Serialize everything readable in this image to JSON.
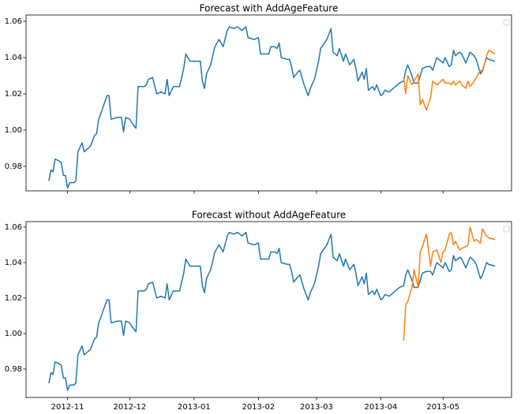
{
  "chart_data": [
    {
      "type": "line",
      "title": "Forecast with AddAgeFeature",
      "xlim": [
        11,
        245
      ],
      "ylim": [
        0.9665,
        1.0635
      ],
      "yticks": [
        0.98,
        {
          "value": 1.0,
          "label": "1.00"
        },
        1.02,
        1.04,
        1.06
      ],
      "series": [
        {
          "color": "#1f77b4",
          "x": [
            22,
            23,
            24,
            25,
            27,
            28,
            29,
            30,
            31,
            32,
            34,
            35,
            36,
            38,
            39,
            41,
            42,
            44,
            45,
            46,
            47,
            50,
            51,
            52,
            55,
            57,
            58,
            59,
            61,
            62,
            64,
            65,
            68,
            69,
            70,
            72,
            74,
            76,
            78,
            79,
            80,
            82,
            85,
            87,
            88,
            90,
            93,
            95,
            96,
            97,
            98,
            100,
            102,
            104,
            106,
            108,
            109,
            111,
            113,
            115,
            117,
            118,
            121,
            123,
            124,
            126,
            128,
            129,
            131,
            132,
            133,
            134,
            137,
            138,
            139,
            140,
            142,
            143,
            145,
            147,
            148,
            150,
            152,
            153,
            156,
            158,
            159,
            161,
            162,
            164,
            165,
            167,
            169,
            170,
            171,
            173,
            174,
            175,
            176,
            178,
            179,
            180,
            182,
            183,
            184,
            186,
            188,
            190,
            191,
            193,
            194,
            195,
            197,
            198,
            200,
            201,
            202,
            204,
            206,
            207,
            209,
            211,
            212,
            213,
            215,
            216,
            217,
            218,
            220,
            221,
            223,
            224,
            225,
            227,
            228,
            230,
            231,
            233,
            234,
            237
          ],
          "values": [
            0.972,
            0.978,
            0.977,
            0.984,
            0.983,
            0.982,
            0.975,
            0.975,
            0.968,
            0.971,
            0.971,
            0.972,
            0.988,
            0.993,
            0.988,
            0.99,
            0.991,
            0.997,
            0.998,
            1.006,
            1.009,
            1.019,
            1.019,
            1.006,
            1.007,
            1.007,
            0.999,
            1.007,
            1.006,
            1.004,
            1.001,
            1.024,
            1.024,
            1.025,
            1.028,
            1.029,
            1.02,
            1.021,
            1.02,
            1.028,
            1.019,
            1.024,
            1.024,
            1.034,
            1.042,
            1.038,
            1.038,
            1.038,
            1.027,
            1.023,
            1.031,
            1.036,
            1.046,
            1.05,
            1.046,
            1.055,
            1.057,
            1.056,
            1.057,
            1.055,
            1.057,
            1.051,
            1.05,
            1.051,
            1.042,
            1.042,
            1.042,
            1.046,
            1.046,
            1.045,
            1.048,
            1.04,
            1.039,
            1.039,
            1.035,
            1.029,
            1.032,
            1.033,
            1.025,
            1.019,
            1.023,
            1.028,
            1.038,
            1.045,
            1.05,
            1.056,
            1.043,
            1.041,
            1.045,
            1.038,
            1.042,
            1.036,
            1.039,
            1.034,
            1.027,
            1.032,
            1.028,
            1.034,
            1.022,
            1.024,
            1.022,
            1.025,
            1.019,
            1.02,
            1.022,
            1.021,
            1.023,
            1.025,
            1.026,
            1.027,
            1.033,
            1.036,
            1.03,
            1.026,
            1.026,
            1.03,
            1.034,
            1.035,
            1.035,
            1.033,
            1.04,
            1.038,
            1.037,
            1.04,
            1.035,
            1.036,
            1.044,
            1.041,
            1.043,
            1.042,
            1.037,
            1.04,
            1.043,
            1.041,
            1.039,
            1.031,
            1.033,
            1.04,
            1.039,
            1.038
          ]
        },
        {
          "color": "#ff7f0e",
          "x": [
            193,
            194,
            195,
            197,
            198,
            200,
            201,
            202,
            204,
            206,
            207,
            209,
            211,
            212,
            213,
            215,
            216,
            217,
            218,
            220,
            221,
            223,
            224,
            225,
            227,
            228,
            230,
            231,
            233,
            234,
            237
          ],
          "values": [
            1.029,
            1.02,
            1.03,
            1.025,
            1.027,
            1.031,
            1.014,
            1.017,
            1.011,
            1.018,
            1.027,
            1.025,
            1.027,
            1.028,
            1.026,
            1.026,
            1.025,
            1.027,
            1.025,
            1.027,
            1.025,
            1.023,
            1.027,
            1.024,
            1.027,
            1.029,
            1.033,
            1.032,
            1.041,
            1.044,
            1.042
          ]
        }
      ]
    },
    {
      "type": "line",
      "title": "Forecast without AddAgeFeature",
      "xlim": [
        11,
        245
      ],
      "ylim": [
        0.964,
        1.0631
      ],
      "yticks": [
        0.98,
        {
          "value": 1.0,
          "label": "1.00"
        },
        1.02,
        1.04,
        1.06
      ],
      "xticks": [
        {
          "value": 31,
          "label": "2012-11"
        },
        {
          "value": 61,
          "label": "2012-12"
        },
        {
          "value": 92,
          "label": "2013-01"
        },
        {
          "value": 123,
          "label": "2013-02"
        },
        {
          "value": 151,
          "label": "2013-03"
        },
        {
          "value": 182,
          "label": "2013-04"
        },
        {
          "value": 212,
          "label": "2013-05"
        }
      ],
      "series": [
        {
          "color": "#1f77b4",
          "x": [
            22,
            23,
            24,
            25,
            27,
            28,
            29,
            30,
            31,
            32,
            34,
            35,
            36,
            38,
            39,
            41,
            42,
            44,
            45,
            46,
            47,
            50,
            51,
            52,
            55,
            57,
            58,
            59,
            61,
            62,
            64,
            65,
            68,
            69,
            70,
            72,
            74,
            76,
            78,
            79,
            80,
            82,
            85,
            87,
            88,
            90,
            93,
            95,
            96,
            97,
            98,
            100,
            102,
            104,
            106,
            108,
            109,
            111,
            113,
            115,
            117,
            118,
            121,
            123,
            124,
            126,
            128,
            129,
            131,
            132,
            133,
            134,
            137,
            138,
            139,
            140,
            142,
            143,
            145,
            147,
            148,
            150,
            152,
            153,
            156,
            158,
            159,
            161,
            162,
            164,
            165,
            167,
            169,
            170,
            171,
            173,
            174,
            175,
            176,
            178,
            179,
            180,
            182,
            183,
            184,
            186,
            188,
            190,
            191,
            193,
            194,
            195,
            197,
            198,
            200,
            201,
            202,
            204,
            206,
            207,
            209,
            211,
            212,
            213,
            215,
            216,
            217,
            218,
            220,
            221,
            223,
            224,
            225,
            227,
            228,
            230,
            231,
            233,
            234,
            237
          ],
          "values": [
            0.972,
            0.978,
            0.977,
            0.984,
            0.983,
            0.982,
            0.975,
            0.975,
            0.968,
            0.971,
            0.971,
            0.972,
            0.988,
            0.993,
            0.988,
            0.99,
            0.991,
            0.997,
            0.998,
            1.006,
            1.009,
            1.019,
            1.019,
            1.006,
            1.007,
            1.007,
            0.999,
            1.007,
            1.006,
            1.004,
            1.001,
            1.024,
            1.024,
            1.025,
            1.028,
            1.029,
            1.02,
            1.021,
            1.02,
            1.028,
            1.019,
            1.024,
            1.024,
            1.034,
            1.042,
            1.038,
            1.038,
            1.038,
            1.027,
            1.023,
            1.031,
            1.036,
            1.046,
            1.05,
            1.046,
            1.055,
            1.057,
            1.056,
            1.057,
            1.055,
            1.057,
            1.051,
            1.05,
            1.051,
            1.042,
            1.042,
            1.042,
            1.046,
            1.046,
            1.045,
            1.048,
            1.04,
            1.039,
            1.039,
            1.035,
            1.029,
            1.032,
            1.033,
            1.025,
            1.019,
            1.023,
            1.028,
            1.038,
            1.045,
            1.05,
            1.056,
            1.043,
            1.041,
            1.045,
            1.038,
            1.042,
            1.036,
            1.039,
            1.034,
            1.027,
            1.032,
            1.028,
            1.034,
            1.022,
            1.024,
            1.022,
            1.025,
            1.019,
            1.02,
            1.022,
            1.021,
            1.023,
            1.025,
            1.026,
            1.027,
            1.033,
            1.036,
            1.03,
            1.026,
            1.026,
            1.03,
            1.034,
            1.035,
            1.035,
            1.033,
            1.04,
            1.038,
            1.037,
            1.04,
            1.035,
            1.036,
            1.044,
            1.041,
            1.043,
            1.042,
            1.037,
            1.04,
            1.043,
            1.041,
            1.039,
            1.031,
            1.033,
            1.04,
            1.039,
            1.038
          ]
        },
        {
          "color": "#ff7f0e",
          "x": [
            193,
            194,
            195,
            197,
            198,
            200,
            201,
            202,
            204,
            206,
            207,
            209,
            211,
            212,
            213,
            215,
            216,
            217,
            218,
            220,
            221,
            223,
            224,
            225,
            227,
            228,
            230,
            231,
            233,
            234,
            237
          ],
          "values": [
            0.996,
            1.016,
            1.018,
            1.026,
            1.036,
            1.026,
            1.046,
            1.049,
            1.056,
            1.038,
            1.046,
            1.047,
            1.04,
            1.046,
            1.047,
            1.056,
            1.057,
            1.05,
            1.052,
            1.047,
            1.048,
            1.049,
            1.05,
            1.06,
            1.052,
            1.053,
            1.051,
            1.059,
            1.055,
            1.054,
            1.053
          ]
        }
      ]
    }
  ]
}
